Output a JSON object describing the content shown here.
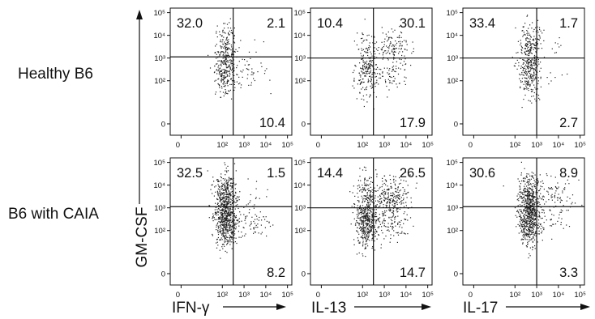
{
  "figure": {
    "row_labels": [
      "Healthy B6",
      "B6 with CAIA"
    ],
    "y_axis_label": "GM-CSF",
    "column_labels": [
      "IFN-γ",
      "IL-13",
      "IL-17"
    ],
    "tick_labels": {
      "x": [
        "0",
        "10²",
        "10³",
        "10⁴",
        "10⁵"
      ],
      "y": [
        "10⁵",
        "10⁴",
        "10³",
        "10²",
        "0"
      ]
    }
  },
  "chart_data": [
    {
      "type": "scatter",
      "row": "Healthy B6",
      "x_marker": "IFN-γ",
      "y_marker": "GM-CSF",
      "quadrants": {
        "upper_left": "32.0",
        "upper_right": "2.1",
        "lower_left": "",
        "lower_right": "10.4"
      },
      "gate": {
        "x_decade": 2.5,
        "y_decade": 3.05
      }
    },
    {
      "type": "scatter",
      "row": "Healthy B6",
      "x_marker": "IL-13",
      "y_marker": "GM-CSF",
      "quadrants": {
        "upper_left": "10.4",
        "upper_right": "30.1",
        "lower_left": "",
        "lower_right": "17.9"
      },
      "gate": {
        "x_decade": 2.5,
        "y_decade": 3.0
      }
    },
    {
      "type": "scatter",
      "row": "Healthy B6",
      "x_marker": "IL-17",
      "y_marker": "GM-CSF",
      "quadrants": {
        "upper_left": "33.4",
        "upper_right": "1.7",
        "lower_left": "",
        "lower_right": "2.7"
      },
      "gate": {
        "x_decade": 3.0,
        "y_decade": 3.0
      }
    },
    {
      "type": "scatter",
      "row": "B6 with CAIA",
      "x_marker": "IFN-γ",
      "y_marker": "GM-CSF",
      "quadrants": {
        "upper_left": "32.5",
        "upper_right": "1.5",
        "lower_left": "",
        "lower_right": "8.2"
      },
      "gate": {
        "x_decade": 2.5,
        "y_decade": 3.05
      }
    },
    {
      "type": "scatter",
      "row": "B6 with CAIA",
      "x_marker": "IL-13",
      "y_marker": "GM-CSF",
      "quadrants": {
        "upper_left": "14.4",
        "upper_right": "26.5",
        "lower_left": "",
        "lower_right": "14.7"
      },
      "gate": {
        "x_decade": 2.5,
        "y_decade": 3.0
      }
    },
    {
      "type": "scatter",
      "row": "B6 with CAIA",
      "x_marker": "IL-17",
      "y_marker": "GM-CSF",
      "quadrants": {
        "upper_left": "30.6",
        "upper_right": "8.9",
        "lower_left": "",
        "lower_right": "3.3"
      },
      "gate": {
        "x_decade": 3.0,
        "y_decade": 3.05
      }
    }
  ]
}
